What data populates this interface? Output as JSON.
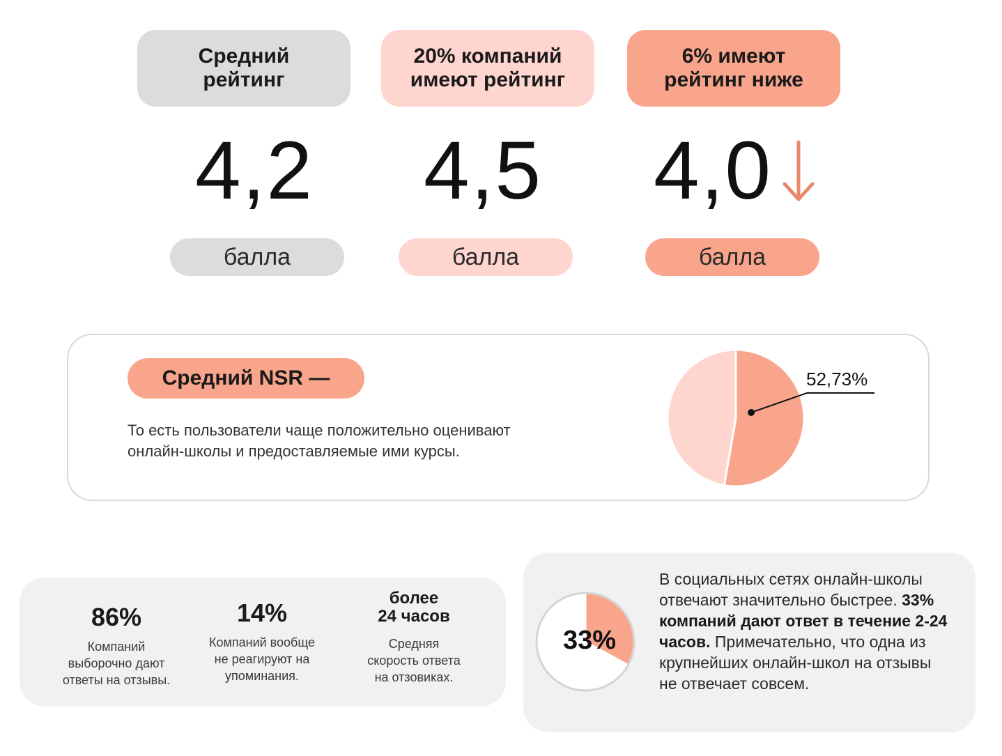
{
  "ratings": [
    {
      "label": "Средний\nрейтинг",
      "value": "4,2",
      "unit": "балла",
      "color": "#dcdcdc"
    },
    {
      "label": "20% компаний\nимеют рейтинг",
      "value": "4,5",
      "unit": "балла",
      "color": "#ffd6cf"
    },
    {
      "label": "6% имеют\nрейтинг ниже",
      "value": "4,0",
      "unit": "балла",
      "color": "#f9a58c",
      "arrow": "down-arrow-icon",
      "arrow_color": "#e8876c"
    }
  ],
  "nsr": {
    "title": "Средний NSR —",
    "text": "То есть пользователи чаще положительно оценивают\nонлайн-школы и предоставляемые ими курсы."
  },
  "stats": [
    {
      "value": "86%",
      "desc": "Компаний\nвыборочно дают\nответы на отзывы."
    },
    {
      "value": "14%",
      "desc": "Компаний вообще\nне реагируют на\nупоминания."
    },
    {
      "value": "более\n24 часов",
      "desc": "Средняя\nскорость ответа\nна отзовиках."
    }
  ],
  "social": {
    "text_1": "В социальных сетях онлайн-школы отвечают значительно быстрее. ",
    "text_bold": "33% компаний дают ответ в течение 2-24 часов.",
    "text_2": " Примечательно, что одна из крупнейших онлайн-школ на отзывы не отвечает совсем."
  },
  "chart_data": [
    {
      "type": "pie",
      "values": [
        52.73,
        47.27
      ],
      "colors": [
        "#f9a58c",
        "#ffd6cf"
      ],
      "annotation": "52,73%"
    },
    {
      "type": "pie",
      "values": [
        33,
        67
      ],
      "colors": [
        "#f9a58c",
        "#ffffff"
      ],
      "annotation": "33%"
    }
  ]
}
